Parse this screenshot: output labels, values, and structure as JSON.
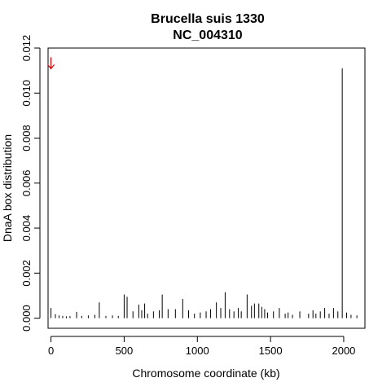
{
  "chart_data": {
    "type": "bar",
    "title_line1": "Brucella suis 1330",
    "title_line2": "NC_004310",
    "xlabel": "Chromosome coordinate (kb)",
    "ylabel": "DnaA box distribution",
    "xlim": [
      -20,
      2145
    ],
    "ylim": [
      -0.00045,
      0.012
    ],
    "x_ticks": [
      0,
      500,
      1000,
      1500,
      2000
    ],
    "x_tick_labels": [
      "0",
      "500",
      "1000",
      "1500",
      "2000"
    ],
    "y_ticks": [
      0,
      0.002,
      0.004,
      0.006,
      0.008,
      0.01,
      0.012
    ],
    "y_tick_labels": [
      "0.000",
      "0.002",
      "0.004",
      "0.006",
      "0.008",
      "0.010",
      "0.012"
    ],
    "grid": false,
    "bar_color": "#000000",
    "arrow": {
      "x": 0,
      "y": 0.0113,
      "color": "#cc0000"
    },
    "x": [
      0,
      30,
      55,
      80,
      105,
      130,
      175,
      210,
      255,
      300,
      330,
      375,
      420,
      460,
      500,
      520,
      560,
      600,
      620,
      640,
      660,
      700,
      740,
      760,
      800,
      850,
      900,
      940,
      980,
      1020,
      1060,
      1090,
      1130,
      1160,
      1190,
      1220,
      1250,
      1280,
      1300,
      1340,
      1370,
      1390,
      1420,
      1440,
      1460,
      1480,
      1520,
      1560,
      1600,
      1620,
      1650,
      1700,
      1760,
      1790,
      1810,
      1840,
      1870,
      1900,
      1930,
      1960,
      1990,
      2020,
      2050,
      2090
    ],
    "values": [
      0.00045,
      0.00018,
      0.00012,
      0.0001,
      8e-05,
      9e-05,
      0.00028,
      0.0001,
      0.00012,
      0.00015,
      0.0007,
      0.0001,
      0.00012,
      0.0001,
      0.00105,
      0.00095,
      0.0003,
      0.0006,
      0.00035,
      0.00065,
      0.0002,
      0.0003,
      0.00035,
      0.00105,
      0.0004,
      0.0004,
      0.00085,
      0.00035,
      0.0002,
      0.00025,
      0.0003,
      0.0004,
      0.0007,
      0.00045,
      0.00115,
      0.0004,
      0.0003,
      0.00045,
      0.0003,
      0.00105,
      0.00055,
      0.00065,
      0.00065,
      0.0005,
      0.0004,
      0.00025,
      0.0003,
      0.00045,
      0.0002,
      0.00025,
      0.00015,
      0.0003,
      0.0002,
      0.00035,
      0.0002,
      0.0003,
      0.00045,
      0.0002,
      0.00045,
      0.0003,
      0.0111,
      0.00025,
      0.00015,
      0.00012
    ]
  }
}
